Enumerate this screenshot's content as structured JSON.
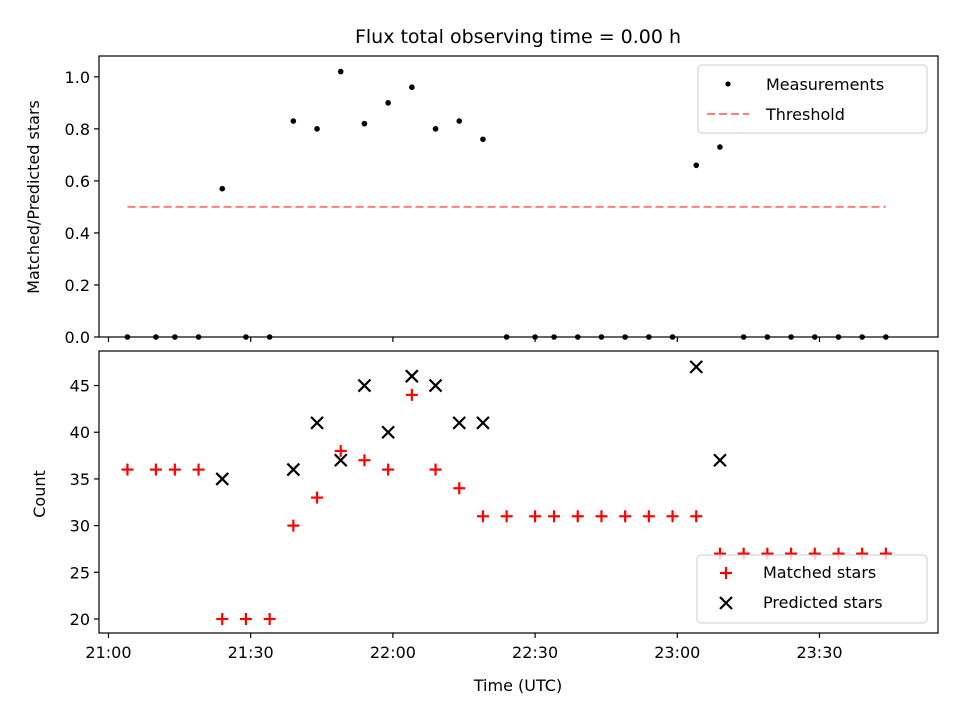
{
  "chart_data": [
    {
      "type": "scatter",
      "title": "Flux total observing time = 0.00 h",
      "xlabel": "",
      "ylabel": "Matched/Predicted stars",
      "ylim": [
        0,
        1.08
      ],
      "yticks": [
        "0.0",
        "0.2",
        "0.4",
        "0.6",
        "0.8",
        "1.0"
      ],
      "xlim": [
        "20:58",
        "23:55"
      ],
      "legend_position": "top-right",
      "series": [
        {
          "name": "Measurements",
          "marker": "dot",
          "color": "#000000",
          "x": [
            "21:04",
            "21:10",
            "21:14",
            "21:19",
            "21:24",
            "21:29",
            "21:34",
            "21:39",
            "21:44",
            "21:49",
            "21:54",
            "21:59",
            "22:04",
            "22:09",
            "22:14",
            "22:19",
            "22:24",
            "22:30",
            "22:34",
            "22:39",
            "22:44",
            "22:49",
            "22:54",
            "22:59",
            "23:04",
            "23:09",
            "23:14",
            "23:19",
            "23:24",
            "23:29",
            "23:34",
            "23:39",
            "23:44"
          ],
          "y": [
            0.0,
            0.0,
            0.0,
            0.0,
            0.57,
            0.0,
            0.0,
            0.83,
            0.8,
            1.02,
            0.82,
            0.9,
            0.96,
            0.8,
            0.83,
            0.76,
            0.0,
            0.0,
            0.0,
            0.0,
            0.0,
            0.0,
            0.0,
            0.0,
            0.66,
            0.73,
            0.0,
            0.0,
            0.0,
            0.0,
            0.0,
            0.0,
            0.0
          ]
        },
        {
          "name": "Threshold",
          "marker": "dashed-line",
          "color": "#ff7f7f",
          "x": [
            "21:04",
            "23:44"
          ],
          "y": [
            0.5,
            0.5
          ]
        }
      ]
    },
    {
      "type": "scatter",
      "title": "",
      "xlabel": "Time (UTC)",
      "ylabel": "Count",
      "ylim": [
        18.5,
        48.7
      ],
      "yticks": [
        "20",
        "25",
        "30",
        "35",
        "40",
        "45"
      ],
      "xlim": [
        "20:58",
        "23:55"
      ],
      "xticks": [
        "21:00",
        "21:30",
        "22:00",
        "22:30",
        "23:00",
        "23:30"
      ],
      "legend_position": "bottom-right",
      "series": [
        {
          "name": "Matched stars",
          "marker": "plus",
          "color": "#ff0000",
          "x": [
            "21:04",
            "21:10",
            "21:14",
            "21:19",
            "21:24",
            "21:29",
            "21:34",
            "21:39",
            "21:44",
            "21:49",
            "21:54",
            "21:59",
            "22:04",
            "22:09",
            "22:14",
            "22:19",
            "22:24",
            "22:30",
            "22:34",
            "22:39",
            "22:44",
            "22:49",
            "22:54",
            "22:59",
            "23:04",
            "23:09",
            "23:14",
            "23:19",
            "23:24",
            "23:29",
            "23:34",
            "23:39",
            "23:44"
          ],
          "y": [
            36,
            36,
            36,
            36,
            20,
            20,
            20,
            30,
            33,
            38,
            37,
            36,
            44,
            36,
            34,
            31,
            31,
            31,
            31,
            31,
            31,
            31,
            31,
            31,
            31,
            27,
            27,
            27,
            27,
            27,
            27,
            27,
            27
          ]
        },
        {
          "name": "Predicted stars",
          "marker": "x",
          "color": "#000000",
          "x": [
            "21:24",
            "21:39",
            "21:44",
            "21:49",
            "21:54",
            "21:59",
            "22:04",
            "22:09",
            "22:14",
            "22:19",
            "23:04",
            "23:09"
          ],
          "y": [
            35,
            36,
            41,
            37,
            45,
            40,
            46,
            45,
            41,
            41,
            47,
            37
          ]
        }
      ]
    }
  ]
}
